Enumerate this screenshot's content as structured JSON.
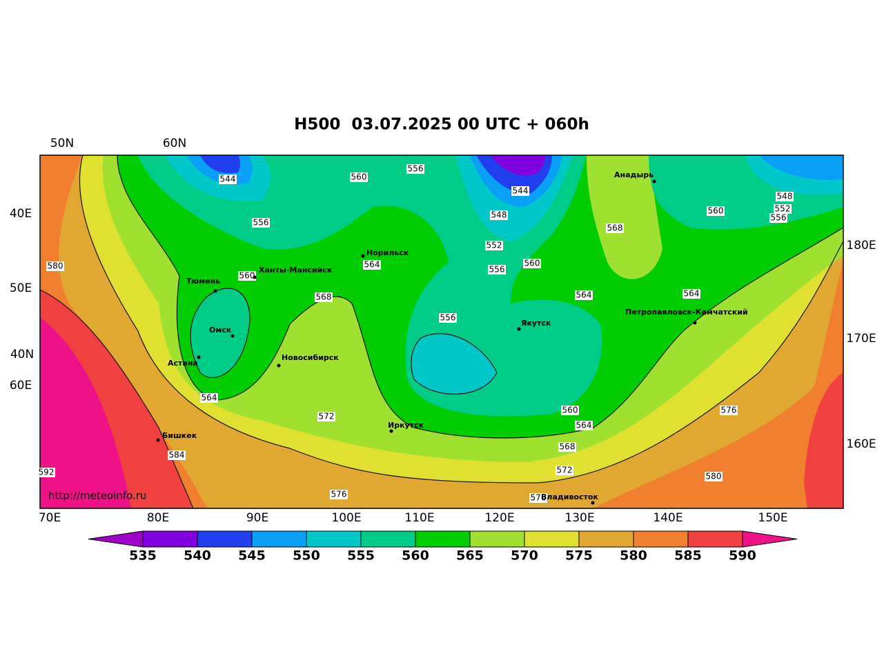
{
  "header": {
    "title": "H500  03.07.2025 00 UTC + 060h"
  },
  "watermark": "http://meteoinfo.ru",
  "axis_labels": {
    "top": [
      "50N",
      "60N"
    ],
    "left": [
      "40E",
      "50E",
      "40N",
      "60E"
    ],
    "right": [
      "180E",
      "170E",
      "160E"
    ],
    "bottom": [
      "70E",
      "80E",
      "90E",
      "100E",
      "110E",
      "120E",
      "130E",
      "140E",
      "150E"
    ]
  },
  "cities": [
    "Анадырь",
    "Норильск",
    "Ханты-Мансийск",
    "Тюмень",
    "Омск",
    "Новосибирск",
    "Астана",
    "Якутск",
    "Петропавловск-Камчатский",
    "Иркутск",
    "Бишкек",
    "Владивосток"
  ],
  "contour_labels": [
    "544",
    "556",
    "560",
    "556",
    "544",
    "548",
    "552",
    "556",
    "560",
    "564",
    "560",
    "568",
    "556",
    "564",
    "568",
    "560",
    "548",
    "552",
    "556",
    "564",
    "580",
    "564",
    "572",
    "584",
    "592",
    "576",
    "560",
    "564",
    "568",
    "572",
    "576",
    "580",
    "576"
  ],
  "colorbar": {
    "levels": [
      535,
      540,
      545,
      550,
      555,
      560,
      565,
      570,
      575,
      580,
      585,
      590
    ],
    "colors": [
      "#a000c8",
      "#8000e0",
      "#2040f0",
      "#0aa0f8",
      "#00c8c8",
      "#00cc88",
      "#00cc00",
      "#a0e030",
      "#e0e030",
      "#e0a830",
      "#f08030",
      "#f04040",
      "#ee1188"
    ]
  }
}
